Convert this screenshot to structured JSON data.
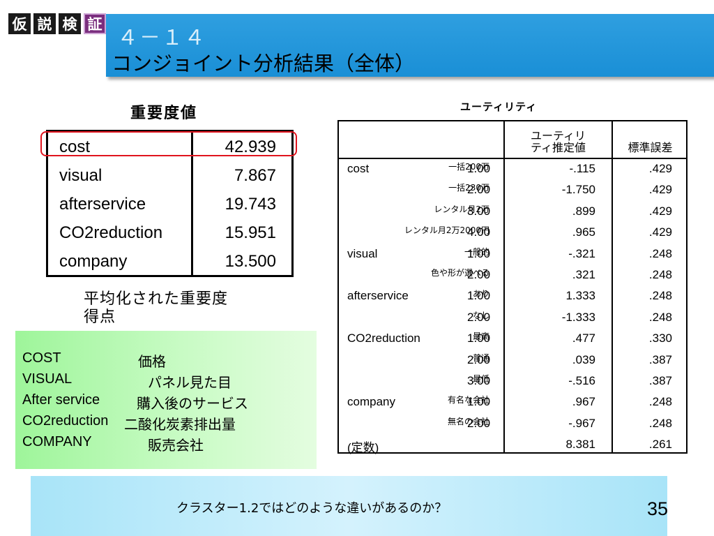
{
  "badges": [
    "仮",
    "説",
    "検",
    "証"
  ],
  "header": {
    "section_number": "４－１４",
    "title": "コンジョイント分析結果（全体）"
  },
  "importance": {
    "title": "重要度値",
    "rows": [
      {
        "name": "cost",
        "value": "42.939"
      },
      {
        "name": "visual",
        "value": "7.867"
      },
      {
        "name": "afterservice",
        "value": "19.743"
      },
      {
        "name": "CO2reduction",
        "value": "15.951"
      },
      {
        "name": "company",
        "value": "13.500"
      }
    ],
    "note_line1": "平均化された重要度",
    "note_line2": "得点"
  },
  "legend": {
    "rows": [
      {
        "en": "COST",
        "ja": "価格"
      },
      {
        "en": "VISUAL",
        "ja": "パネル見た目"
      },
      {
        "en": "After service",
        "ja": "購入後のサービス"
      },
      {
        "en": "CO2reduction",
        "ja": "二酸化炭素排出量"
      },
      {
        "en": "COMPANY",
        "ja": "販売会社"
      }
    ]
  },
  "utility": {
    "title": "ユーティリティ",
    "header_estimate_line1": "ユーティリ",
    "header_estimate_line2": "ティ推定値",
    "header_se": "標準誤差",
    "rows": [
      {
        "attr": "cost",
        "level": "一括200万",
        "code": "1.00",
        "estimate": "-.115",
        "se": ".429"
      },
      {
        "attr": "",
        "level": "一括230万",
        "code": "2.00",
        "estimate": "-1.750",
        "se": ".429"
      },
      {
        "attr": "",
        "level": "レンタル月2万",
        "code": "3.00",
        "estimate": ".899",
        "se": ".429"
      },
      {
        "attr": "",
        "level": "レンタル月2万2000円",
        "code": "4.00",
        "estimate": ".965",
        "se": ".429"
      },
      {
        "attr": "visual",
        "level": "一般的",
        "code": "1.00",
        "estimate": "-.321",
        "se": ".248"
      },
      {
        "attr": "",
        "level": "色や形が選べる",
        "code": "2.00",
        "estimate": ".321",
        "se": ".248"
      },
      {
        "attr": "afterservice",
        "level": "あり",
        "code": "1.00",
        "estimate": "1.333",
        "se": ".248"
      },
      {
        "attr": "",
        "level": "なし",
        "code": "2.00",
        "estimate": "-1.333",
        "se": ".248"
      },
      {
        "attr": "CO2reduction",
        "level": "最高",
        "code": "1.00",
        "estimate": ".477",
        "se": ".330"
      },
      {
        "attr": "",
        "level": "普通",
        "code": "2.00",
        "estimate": ".039",
        "se": ".387"
      },
      {
        "attr": "",
        "level": "最低",
        "code": "3.00",
        "estimate": "-.516",
        "se": ".387"
      },
      {
        "attr": "company",
        "level": "有名な会社",
        "code": "1.00",
        "estimate": ".967",
        "se": ".248"
      },
      {
        "attr": "",
        "level": "無名の会社",
        "code": "2.00",
        "estimate": "-.967",
        "se": ".248"
      },
      {
        "attr": "(定数)",
        "level": "",
        "code": "",
        "estimate": "8.381",
        "se": ".261"
      }
    ]
  },
  "footer": {
    "question": "クラスター1.2ではどのような違いがあるのか？",
    "page_number": "35"
  }
}
